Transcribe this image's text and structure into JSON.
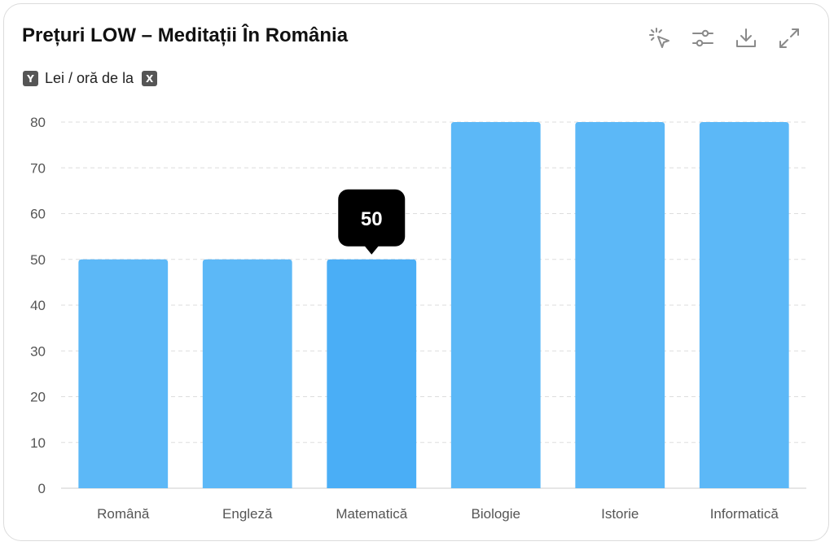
{
  "title": "Prețuri LOW – Meditații În România",
  "toolbar": {
    "icons": [
      "select-pointer-icon",
      "sliders-icon",
      "download-icon",
      "expand-icon"
    ]
  },
  "axis_legend": {
    "y_key": "Y",
    "y_label": "Lei / oră de la",
    "x_key": "X"
  },
  "tooltip": {
    "category": "Matematică",
    "value": "50"
  },
  "colors": {
    "bar": "#5cb8f7",
    "bar_active": "#4aaef6",
    "tooltip_bg": "#000000",
    "grid": "#dddddd"
  },
  "chart_data": {
    "type": "bar",
    "title": "Prețuri LOW – Meditații În România",
    "ylabel": "Lei / oră de la",
    "xlabel": "",
    "categories": [
      "Română",
      "Engleză",
      "Matematică",
      "Biologie",
      "Istorie",
      "Informatică"
    ],
    "values": [
      50,
      50,
      50,
      80,
      80,
      80
    ],
    "ylim": [
      0,
      80
    ],
    "yticks": [
      0,
      10,
      20,
      30,
      40,
      50,
      60,
      70,
      80
    ],
    "grid": true,
    "highlighted_index": 2
  }
}
